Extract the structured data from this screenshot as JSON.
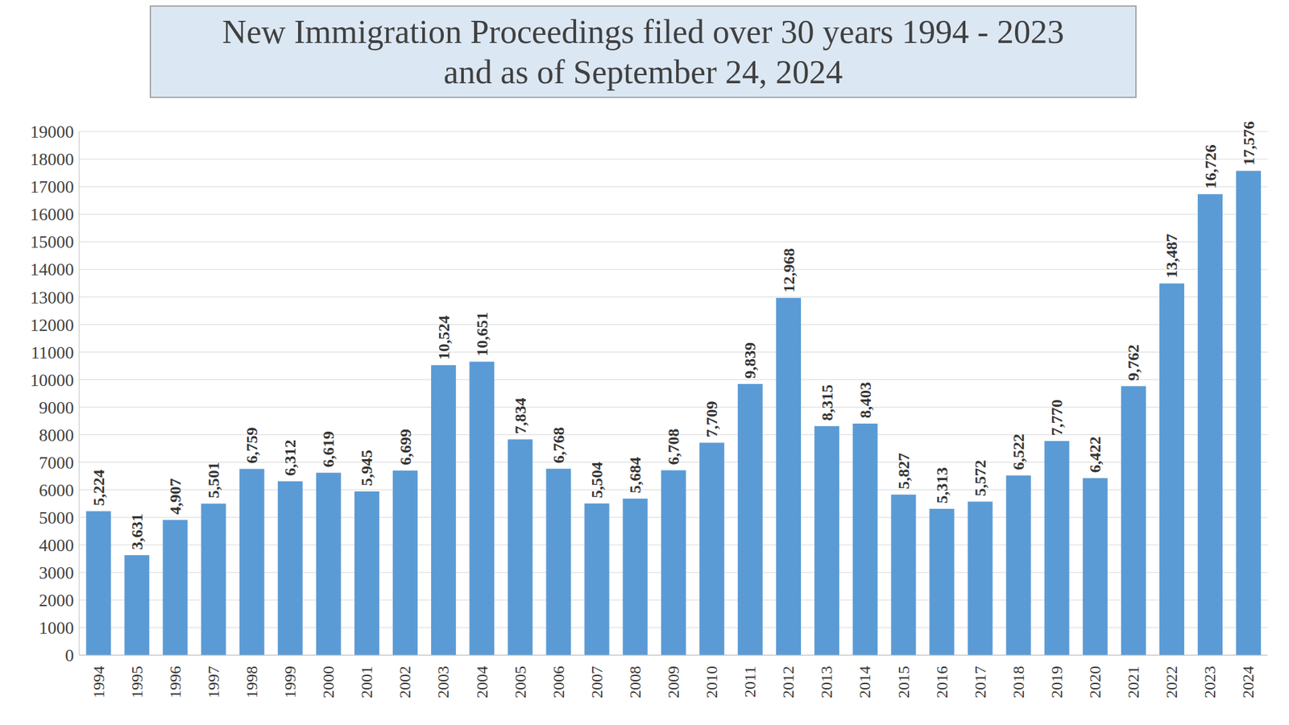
{
  "chart_data": {
    "type": "bar",
    "title": "New Immigration Proceedings filed over 30 years 1994 - 2023\nand as of September 24, 2024",
    "categories": [
      "1994",
      "1995",
      "1996",
      "1997",
      "1998",
      "1999",
      "2000",
      "2001",
      "2002",
      "2003",
      "2004",
      "2005",
      "2006",
      "2007",
      "2008",
      "2009",
      "2010",
      "2011",
      "2012",
      "2013",
      "2014",
      "2015",
      "2016",
      "2017",
      "2018",
      "2019",
      "2020",
      "2021",
      "2022",
      "2023",
      "2024"
    ],
    "values": [
      5224,
      3631,
      4907,
      5501,
      6759,
      6312,
      6619,
      5945,
      6699,
      10524,
      10651,
      7834,
      6768,
      5504,
      5684,
      6708,
      7709,
      9839,
      12968,
      8315,
      8403,
      5827,
      5313,
      5572,
      6522,
      7770,
      6422,
      9762,
      13487,
      16726,
      17576
    ],
    "value_labels": [
      "5,224",
      "3,631",
      "4,907",
      "5,501",
      "6,759",
      "6,312",
      "6,619",
      "5,945",
      "6,699",
      "10,524",
      "10,651",
      "7,834",
      "6,768",
      "5,504",
      "5,684",
      "6,708",
      "7,709",
      "9,839",
      "12,968",
      "8,315",
      "8,403",
      "5,827",
      "5,313",
      "5,572",
      "6,522",
      "7,770",
      "6,422",
      "9,762",
      "13,487",
      "16,726",
      "17,576"
    ],
    "color": "#5b9bd5",
    "ylim": [
      0,
      19000
    ],
    "yticks": [
      0,
      1000,
      2000,
      3000,
      4000,
      5000,
      6000,
      7000,
      8000,
      9000,
      10000,
      11000,
      12000,
      13000,
      14000,
      15000,
      16000,
      17000,
      18000,
      19000
    ],
    "grid": true,
    "data_labels": true
  }
}
